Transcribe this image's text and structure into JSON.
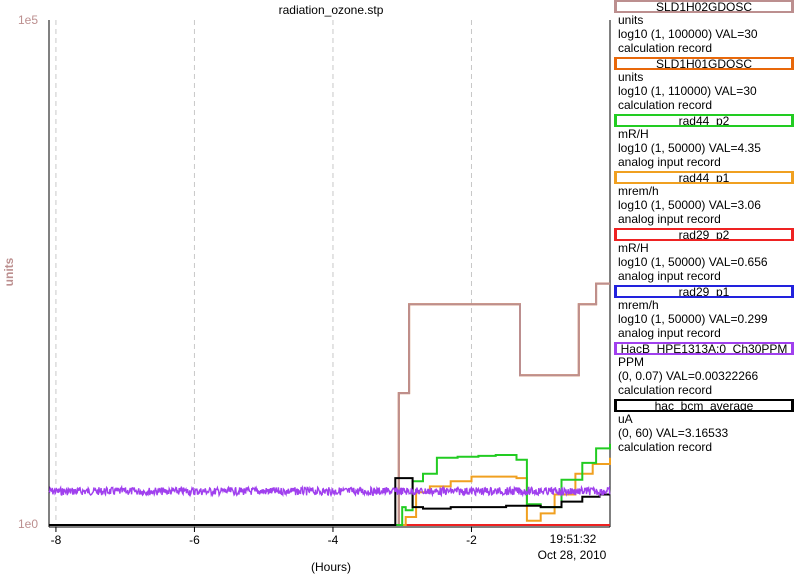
{
  "chart_data": {
    "type": "line",
    "title": "radiation_ozone.stp",
    "xlabel": "(Hours)",
    "ylabel": "units",
    "x_unit": "hours",
    "xlim": [
      -8.1,
      0.0
    ],
    "x_ticks": [
      -8,
      -6,
      -4,
      -2
    ],
    "x_tick_labels": [
      "-8",
      "-6",
      "-4",
      "-2"
    ],
    "ylim": [
      1,
      100000
    ],
    "y_scale": "log",
    "y_tick_labels": {
      "top": "1e5",
      "bottom": "1e0"
    },
    "time_label": "19:51:32",
    "date_label": "Oct 28, 2010",
    "grid": true,
    "legend_position": "right",
    "series": [
      {
        "name": "SLD1H02GDOSC",
        "color": "#bc8f8f",
        "x": [
          -8.1,
          -3.2,
          -3.05,
          -2.95,
          -2.9,
          -2.6,
          -2.5,
          -1.35,
          -1.3,
          -0.5,
          -0.45,
          -0.25,
          -0.2,
          0.0
        ],
        "y": [
          1,
          1,
          20,
          20,
          150,
          150,
          150,
          150,
          30,
          30,
          150,
          150,
          240,
          240
        ]
      },
      {
        "name": "SLD1H01GDOSC",
        "color": "#e8680a",
        "x": [
          -8.1,
          -3.2,
          -3.05,
          -2.95,
          -2.9,
          -2.6,
          -2.5,
          -1.35,
          -1.3,
          -0.5,
          -0.45,
          -0.25,
          -0.2,
          0.0
        ],
        "y": [
          1,
          1,
          20,
          20,
          150,
          150,
          150,
          150,
          30,
          30,
          150,
          150,
          240,
          240
        ]
      },
      {
        "name": "rad44_p2",
        "color": "#22cc22",
        "x": [
          -8.1,
          -3.1,
          -3.0,
          -2.95,
          -2.85,
          -2.7,
          -2.5,
          -2.2,
          -1.9,
          -1.65,
          -1.35,
          -1.2,
          -1.0,
          -0.7,
          -0.4,
          -0.2,
          0.0
        ],
        "y": [
          1,
          1,
          1.5,
          1.4,
          2.7,
          3.2,
          4.6,
          4.7,
          4.8,
          4.9,
          4.4,
          1.6,
          1.5,
          2.8,
          4.1,
          5.7,
          6.3
        ]
      },
      {
        "name": "rad44_p1",
        "color": "#f0a020",
        "x": [
          -8.1,
          -3.1,
          -2.95,
          -2.8,
          -2.6,
          -2.3,
          -2.0,
          -1.7,
          -1.35,
          -1.2,
          -1.0,
          -0.8,
          -0.5,
          -0.25,
          0.0
        ],
        "y": [
          1,
          1,
          1.2,
          2.1,
          2.4,
          2.7,
          3.0,
          3.0,
          2.9,
          1.1,
          1.3,
          2.0,
          3.2,
          4.0,
          4.6
        ]
      },
      {
        "name": "rad29_p2",
        "color": "#ee2222",
        "x": [
          -8.1,
          0.0
        ],
        "y": [
          1,
          1
        ]
      },
      {
        "name": "rad29_p1",
        "color": "#2222dd",
        "x": [
          -8.1,
          0.0
        ],
        "y": [
          1,
          1
        ]
      },
      {
        "name": "HacB_HPE1313A:0_Ch30PPM",
        "color": "#a040ee",
        "x": [
          -8.1,
          0.0
        ],
        "y": [
          2.15,
          2.15
        ]
      },
      {
        "name": "hac_bcm_average",
        "color": "#000000",
        "x": [
          -8.1,
          -3.15,
          -3.1,
          -2.9,
          -2.85,
          -2.7,
          -2.3,
          -1.9,
          -1.5,
          -1.3,
          -1.0,
          -0.7,
          -0.4,
          -0.15,
          0.0
        ],
        "y": [
          1,
          1,
          2.9,
          2.9,
          1.5,
          1.45,
          1.5,
          1.5,
          1.55,
          1.55,
          1.5,
          1.7,
          1.9,
          2.0,
          2.0
        ]
      }
    ]
  },
  "legend": [
    {
      "name": "SLD1H02GDOSC",
      "color": "#bc8f8f",
      "unit": "units",
      "range": "log10 (1, 100000) VAL=30",
      "record": "calculation record"
    },
    {
      "name": "SLD1H01GDOSC",
      "color": "#e8680a",
      "unit": "units",
      "range": "log10 (1, 110000) VAL=30",
      "record": "calculation record"
    },
    {
      "name": "rad44_p2",
      "color": "#22cc22",
      "unit": "mR/H",
      "range": "log10 (1, 50000) VAL=4.35",
      "record": "analog input record"
    },
    {
      "name": "rad44_p1",
      "color": "#f0a020",
      "unit": "mrem/h",
      "range": "log10 (1, 50000) VAL=3.06",
      "record": "analog input record"
    },
    {
      "name": "rad29_p2",
      "color": "#ee2222",
      "unit": "mR/H",
      "range": "log10 (1, 50000) VAL=0.656",
      "record": "analog input record"
    },
    {
      "name": "rad29_p1",
      "color": "#2222dd",
      "unit": "mrem/h",
      "range": "log10 (1, 50000) VAL=0.299",
      "record": "analog input record"
    },
    {
      "name": "HacB_HPE1313A:0_Ch30PPM",
      "color": "#a040ee",
      "unit": "PPM",
      "range": "(0, 0.07) VAL=0.00322266",
      "record": "calculation record"
    },
    {
      "name": "hac_bcm_average",
      "color": "#000000",
      "unit": "uA",
      "range": "(0, 60) VAL=3.16533",
      "record": "calculation record"
    }
  ]
}
